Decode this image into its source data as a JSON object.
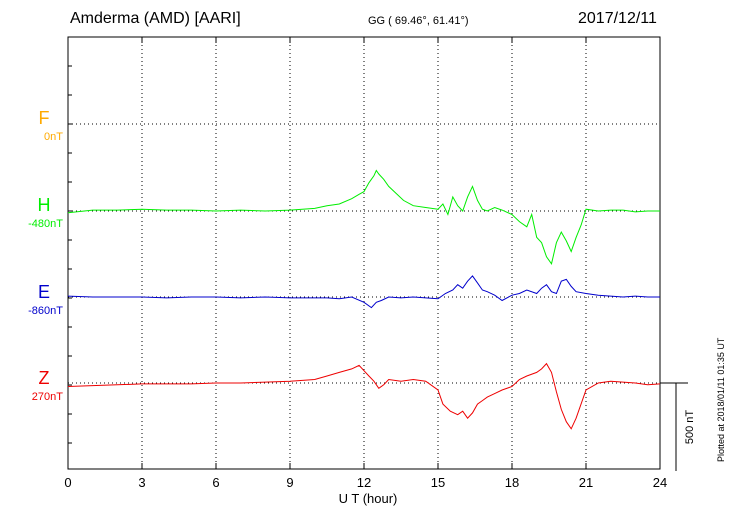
{
  "header": {
    "station": "Amderma (AMD)  [AARI]",
    "coords": "GG ( 69.46°,  61.41°)",
    "date": "2017/12/11"
  },
  "footer": {
    "plotted": "Plotted at 2018/01/11 01:35 UT"
  },
  "colors": {
    "F": "#ffaa00",
    "H": "#00ee00",
    "E": "#0000cc",
    "Z": "#ee0000"
  },
  "chart_data": {
    "type": "line",
    "xlabel": "U T (hour)",
    "xlim": [
      0,
      24
    ],
    "xticks": [
      "0",
      "3",
      "6",
      "9",
      "12",
      "15",
      "18",
      "21",
      "24"
    ],
    "scale_bar": {
      "label": "500 nT",
      "value": 500
    },
    "grid": true,
    "units": "nT",
    "series": [
      {
        "name": "F",
        "baseline_label": "0nT",
        "x": [],
        "values": []
      },
      {
        "name": "H",
        "baseline_label": "-480nT",
        "x": [
          0,
          1,
          2,
          3,
          4,
          5,
          6,
          7,
          8,
          9,
          10,
          10.5,
          11,
          11.5,
          11.8,
          12,
          12.2,
          12.4,
          12.5,
          12.6,
          12.8,
          13,
          13.3,
          13.6,
          14,
          14.5,
          15,
          15.2,
          15.4,
          15.6,
          15.8,
          16,
          16.2,
          16.4,
          16.6,
          16.8,
          17,
          17.3,
          17.6,
          18,
          18.3,
          18.6,
          18.8,
          19,
          19.2,
          19.4,
          19.6,
          19.8,
          20,
          20.2,
          20.4,
          20.6,
          20.8,
          21,
          21.5,
          22,
          22.5,
          23,
          23.5,
          24
        ],
        "values": [
          -10,
          5,
          5,
          10,
          5,
          5,
          0,
          5,
          0,
          5,
          15,
          30,
          40,
          70,
          95,
          110,
          160,
          200,
          230,
          210,
          180,
          140,
          100,
          60,
          30,
          20,
          10,
          40,
          -20,
          80,
          30,
          0,
          80,
          140,
          60,
          10,
          0,
          20,
          5,
          -20,
          -60,
          -90,
          -20,
          -150,
          -180,
          -260,
          -300,
          -180,
          -120,
          -170,
          -230,
          -150,
          -80,
          10,
          0,
          5,
          5,
          -5,
          0,
          0
        ]
      },
      {
        "name": "E",
        "baseline_label": "-860nT",
        "x": [
          0,
          1,
          2,
          3,
          4,
          5,
          6,
          7,
          8,
          9,
          10,
          10.5,
          11,
          11.5,
          12,
          12.3,
          12.5,
          12.7,
          13,
          13.5,
          14,
          14.5,
          15,
          15.3,
          15.6,
          15.8,
          16,
          16.2,
          16.4,
          16.6,
          16.8,
          17,
          17.3,
          17.6,
          18,
          18.3,
          18.6,
          19,
          19.2,
          19.4,
          19.6,
          19.8,
          20,
          20.2,
          20.4,
          20.6,
          21,
          21.5,
          22,
          22.5,
          23,
          23.5,
          24
        ],
        "values": [
          5,
          0,
          0,
          0,
          -5,
          0,
          0,
          -5,
          0,
          -5,
          -5,
          -5,
          -10,
          0,
          -30,
          -60,
          -30,
          -20,
          0,
          -5,
          0,
          -5,
          -10,
          20,
          40,
          70,
          50,
          90,
          120,
          80,
          40,
          30,
          10,
          -20,
          10,
          20,
          40,
          20,
          50,
          70,
          30,
          20,
          90,
          100,
          60,
          30,
          20,
          10,
          5,
          0,
          5,
          0,
          0
        ]
      },
      {
        "name": "Z",
        "baseline_label": "270nT",
        "x": [
          0,
          1,
          2,
          3,
          4,
          5,
          6,
          7,
          8,
          9,
          10,
          10.5,
          11,
          11.5,
          11.8,
          12,
          12.2,
          12.4,
          12.6,
          12.8,
          13,
          13.5,
          14,
          14.5,
          15,
          15.2,
          15.5,
          15.8,
          16,
          16.2,
          16.4,
          16.6,
          16.8,
          17,
          17.3,
          17.6,
          18,
          18.3,
          18.6,
          19,
          19.2,
          19.4,
          19.6,
          19.8,
          20,
          20.2,
          20.4,
          20.6,
          21,
          21.5,
          22,
          22.5,
          23,
          23.5,
          24
        ],
        "values": [
          -20,
          -15,
          -10,
          -5,
          -5,
          -5,
          0,
          0,
          5,
          10,
          20,
          40,
          60,
          80,
          100,
          70,
          40,
          10,
          -30,
          -10,
          20,
          10,
          20,
          10,
          -40,
          -120,
          -160,
          -180,
          -160,
          -200,
          -170,
          -120,
          -100,
          -80,
          -60,
          -40,
          -20,
          20,
          40,
          60,
          80,
          110,
          60,
          -50,
          -150,
          -220,
          -260,
          -200,
          -40,
          0,
          10,
          5,
          0,
          -10,
          -5
        ]
      }
    ]
  }
}
